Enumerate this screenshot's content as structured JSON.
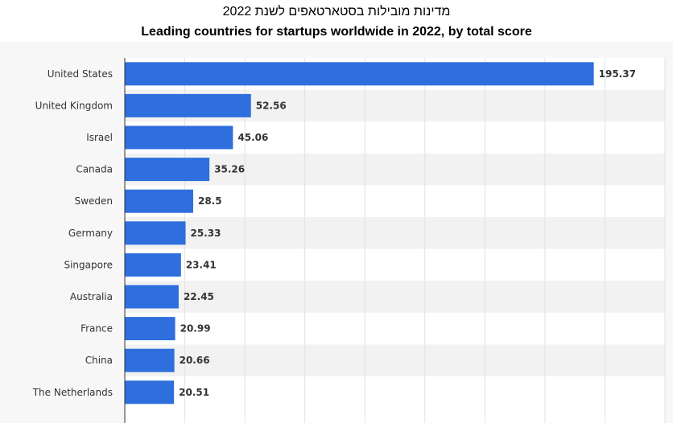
{
  "header": {
    "title_he": "מדינות מובילות בסטארטאפים לשנת 2022",
    "title_en": "Leading countries for startups worldwide in 2022, by total score"
  },
  "colors": {
    "bar": "#2f6fdd",
    "band": "#f2f2f2",
    "grid": "#e2e2e2",
    "axis": "#333333",
    "plot_bg": "#ffffff"
  },
  "chart_data": {
    "type": "bar",
    "orientation": "horizontal",
    "title": "Leading countries for startups worldwide in 2022, by total score",
    "categories": [
      "United States",
      "United Kingdom",
      "Israel",
      "Canada",
      "Sweden",
      "Germany",
      "Singapore",
      "Australia",
      "France",
      "China",
      "The Netherlands"
    ],
    "values": [
      195.37,
      52.56,
      45.06,
      35.26,
      28.5,
      25.33,
      23.41,
      22.45,
      20.99,
      20.66,
      20.51
    ],
    "value_labels": [
      "195.37",
      "52.56",
      "45.06",
      "35.26",
      "28.5",
      "25.33",
      "23.41",
      "22.45",
      "20.99",
      "20.66",
      "20.51"
    ],
    "xlim": [
      0,
      225
    ],
    "grid": true,
    "legend": "none"
  }
}
